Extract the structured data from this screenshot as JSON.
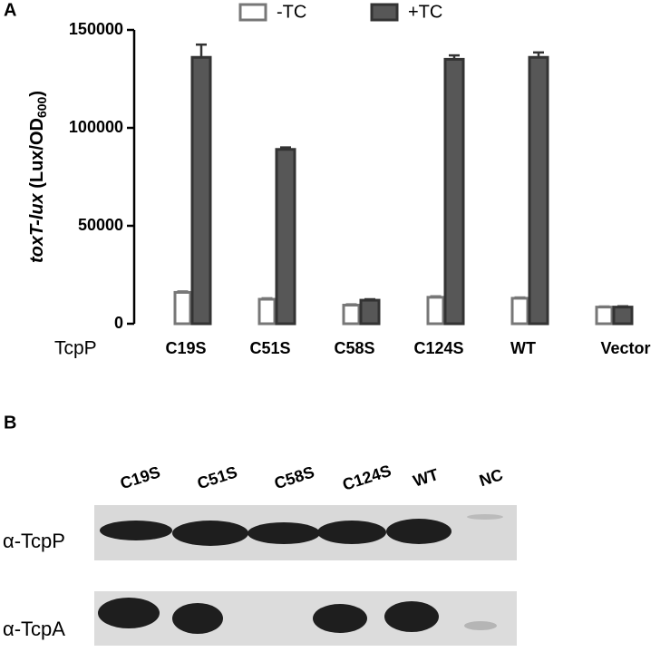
{
  "chart_data": {
    "type": "bar",
    "panel_label": "A",
    "y_label": [
      "toxT-lux",
      " (Lux/OD",
      "600",
      ")"
    ],
    "x_label": "TcpP",
    "categories": [
      "C19S",
      "C51S",
      "C58S",
      "C124S",
      "WT",
      "Vector"
    ],
    "series": [
      {
        "name": "-TC",
        "color": "#ffffff",
        "stroke": "#777777",
        "values": [
          16000,
          12500,
          9500,
          13500,
          13000,
          8500
        ],
        "errors": [
          500,
          500,
          400,
          500,
          400,
          300
        ]
      },
      {
        "name": "+TC",
        "color": "#575757",
        "stroke": "#333333",
        "values": [
          136000,
          89000,
          12000,
          135000,
          136000,
          8500
        ],
        "errors": [
          6500,
          1000,
          500,
          2000,
          2500,
          400
        ]
      }
    ],
    "ylim": [
      0,
      150000
    ],
    "yticks": [
      0,
      50000,
      100000,
      150000
    ],
    "legend": "top",
    "grid": false
  },
  "blot": {
    "panel_label": "B",
    "lanes": [
      "C19S",
      "C51S",
      "C58S",
      "C124S",
      "WT",
      "NC"
    ],
    "rows": [
      "α-TcpP",
      "α-TcpA"
    ]
  }
}
